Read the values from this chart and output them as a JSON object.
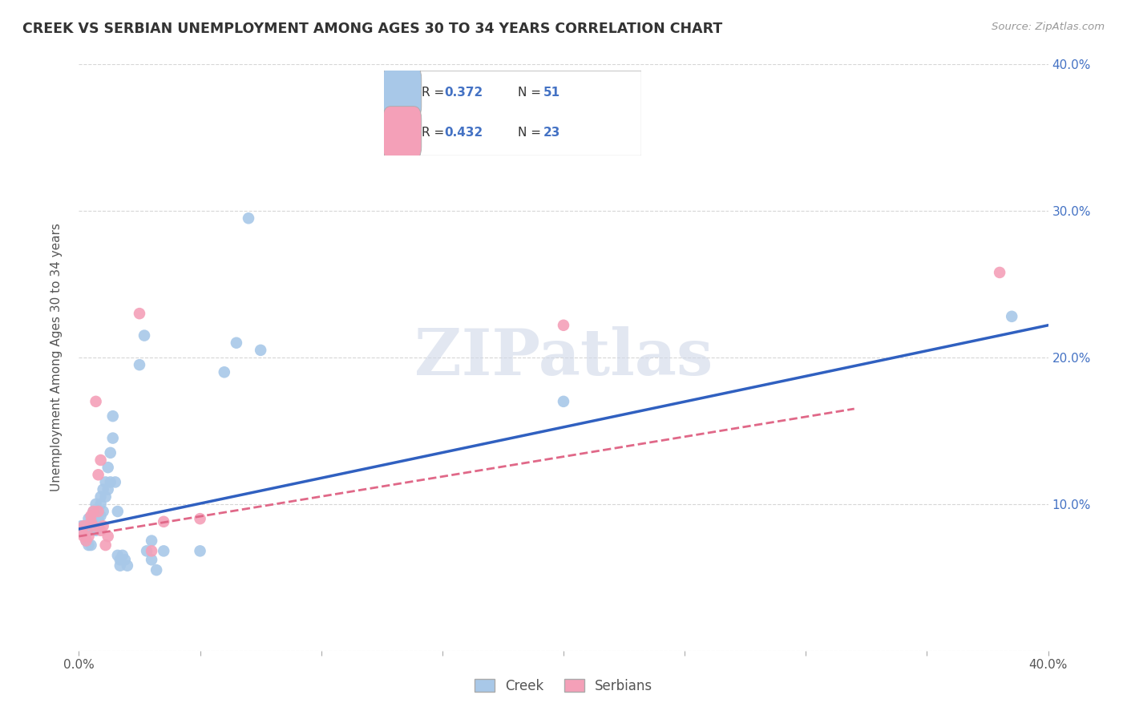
{
  "title": "CREEK VS SERBIAN UNEMPLOYMENT AMONG AGES 30 TO 34 YEARS CORRELATION CHART",
  "source": "Source: ZipAtlas.com",
  "ylabel": "Unemployment Among Ages 30 to 34 years",
  "xlim": [
    0.0,
    0.4
  ],
  "ylim": [
    0.0,
    0.4
  ],
  "creek_R": 0.372,
  "creek_N": 51,
  "serbian_R": 0.432,
  "serbian_N": 23,
  "creek_color": "#a8c8e8",
  "serbian_color": "#f4a0b8",
  "creek_line_color": "#3060c0",
  "serbian_line_color": "#e06888",
  "watermark": "ZIPatlas",
  "creek_line": [
    0.0,
    0.083,
    0.4,
    0.222
  ],
  "serbian_line": [
    0.0,
    0.078,
    0.32,
    0.165
  ],
  "creek_points": [
    [
      0.001,
      0.085
    ],
    [
      0.002,
      0.085
    ],
    [
      0.002,
      0.08
    ],
    [
      0.003,
      0.08
    ],
    [
      0.003,
      0.075
    ],
    [
      0.004,
      0.09
    ],
    [
      0.004,
      0.072
    ],
    [
      0.005,
      0.085
    ],
    [
      0.005,
      0.072
    ],
    [
      0.006,
      0.095
    ],
    [
      0.006,
      0.088
    ],
    [
      0.007,
      0.1
    ],
    [
      0.007,
      0.082
    ],
    [
      0.007,
      0.092
    ],
    [
      0.008,
      0.09
    ],
    [
      0.008,
      0.085
    ],
    [
      0.009,
      0.105
    ],
    [
      0.009,
      0.1
    ],
    [
      0.009,
      0.092
    ],
    [
      0.01,
      0.11
    ],
    [
      0.01,
      0.095
    ],
    [
      0.011,
      0.115
    ],
    [
      0.011,
      0.105
    ],
    [
      0.012,
      0.125
    ],
    [
      0.012,
      0.11
    ],
    [
      0.013,
      0.135
    ],
    [
      0.013,
      0.115
    ],
    [
      0.014,
      0.145
    ],
    [
      0.014,
      0.16
    ],
    [
      0.015,
      0.115
    ],
    [
      0.016,
      0.095
    ],
    [
      0.016,
      0.065
    ],
    [
      0.017,
      0.062
    ],
    [
      0.017,
      0.058
    ],
    [
      0.018,
      0.065
    ],
    [
      0.019,
      0.062
    ],
    [
      0.02,
      0.058
    ],
    [
      0.025,
      0.195
    ],
    [
      0.027,
      0.215
    ],
    [
      0.028,
      0.068
    ],
    [
      0.03,
      0.075
    ],
    [
      0.03,
      0.062
    ],
    [
      0.032,
      0.055
    ],
    [
      0.035,
      0.068
    ],
    [
      0.05,
      0.068
    ],
    [
      0.06,
      0.19
    ],
    [
      0.065,
      0.21
    ],
    [
      0.07,
      0.295
    ],
    [
      0.075,
      0.205
    ],
    [
      0.2,
      0.17
    ],
    [
      0.385,
      0.228
    ]
  ],
  "serbian_points": [
    [
      0.001,
      0.082
    ],
    [
      0.002,
      0.085
    ],
    [
      0.002,
      0.078
    ],
    [
      0.003,
      0.075
    ],
    [
      0.004,
      0.078
    ],
    [
      0.005,
      0.092
    ],
    [
      0.005,
      0.088
    ],
    [
      0.006,
      0.095
    ],
    [
      0.006,
      0.085
    ],
    [
      0.007,
      0.17
    ],
    [
      0.008,
      0.095
    ],
    [
      0.008,
      0.12
    ],
    [
      0.009,
      0.13
    ],
    [
      0.009,
      0.082
    ],
    [
      0.01,
      0.085
    ],
    [
      0.011,
      0.072
    ],
    [
      0.012,
      0.078
    ],
    [
      0.025,
      0.23
    ],
    [
      0.03,
      0.068
    ],
    [
      0.035,
      0.088
    ],
    [
      0.05,
      0.09
    ],
    [
      0.2,
      0.222
    ],
    [
      0.38,
      0.258
    ]
  ]
}
